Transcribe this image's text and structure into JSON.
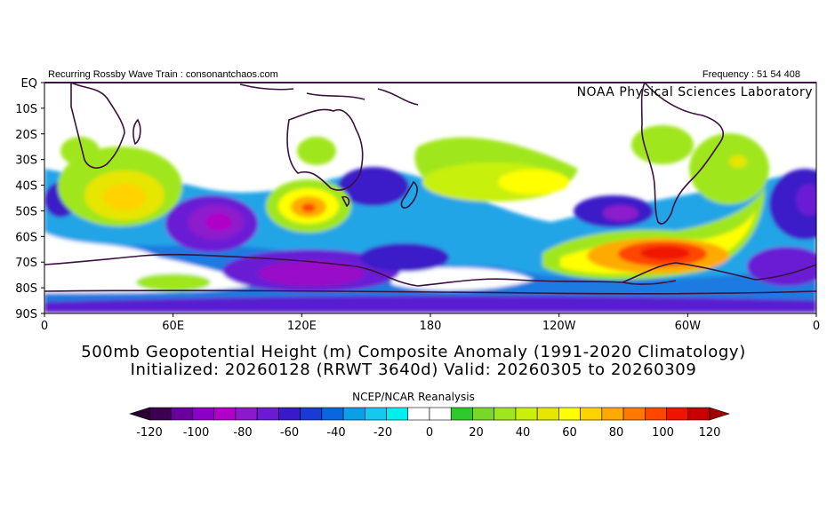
{
  "header": {
    "left": "Recurring Rossby Wave Train : consonantchaos.com",
    "right": "Frequency : 51 54 408",
    "lab": "NOAA Physical Sciences Laboratory"
  },
  "map": {
    "lat_labels": [
      "EQ",
      "10S",
      "20S",
      "30S",
      "40S",
      "50S",
      "60S",
      "70S",
      "80S",
      "90S"
    ],
    "lon_labels": [
      "0",
      "60E",
      "120E",
      "180",
      "120W",
      "60W",
      "0"
    ],
    "lat_range": [
      -90,
      0
    ],
    "lon_range": [
      0,
      360
    ],
    "anomalies": [
      {
        "name": "positive-south-atlantic-africa",
        "lon": 35,
        "lat": -45,
        "value": 45
      },
      {
        "name": "positive-south-indian",
        "lon": 120,
        "lat": -49,
        "value": 80
      },
      {
        "name": "positive-australia",
        "lon": 122,
        "lat": -27,
        "value": 20
      },
      {
        "name": "positive-south-pacific",
        "lon": 200,
        "lat": -38,
        "value": 40
      },
      {
        "name": "positive-southeast-pacific",
        "lon": 240,
        "lat": -38,
        "value": 40
      },
      {
        "name": "positive-bellingshausen",
        "lon": 282,
        "lat": -66,
        "value": 100
      },
      {
        "name": "positive-south-atlantic-west",
        "lon": 305,
        "lat": -40,
        "value": 40
      },
      {
        "name": "positive-weddell",
        "lon": 312,
        "lat": -62,
        "value": 60
      },
      {
        "name": "positive-antarctic-east",
        "lon": 40,
        "lat": -77,
        "value": 20
      },
      {
        "name": "positive-brazil",
        "lon": 313,
        "lat": -22,
        "value": 20
      },
      {
        "name": "negative-south-indian",
        "lon": 78,
        "lat": -52,
        "value": -80
      },
      {
        "name": "negative-east-antarctic",
        "lon": 110,
        "lat": -74,
        "value": -100
      },
      {
        "name": "negative-tasman",
        "lon": 145,
        "lat": -42,
        "value": -60
      },
      {
        "name": "negative-ross",
        "lon": 175,
        "lat": -70,
        "value": -40
      },
      {
        "name": "negative-pacific-south",
        "lon": 255,
        "lat": -48,
        "value": -60
      },
      {
        "name": "negative-atlantic-east",
        "lon": 355,
        "lat": -48,
        "value": -80
      },
      {
        "name": "negative-antarctic-atlantic",
        "lon": 340,
        "lat": -70,
        "value": -80
      },
      {
        "name": "negative-polar",
        "lon": 200,
        "lat": -87,
        "value": -40
      }
    ]
  },
  "title": {
    "line1": "500mb Geopotential Height (m) Composite Anomaly (1991-2020 Climatology)",
    "line2": "Initialized: 20260128 (RRWT 3640d) Valid: 20260305 to 20260309"
  },
  "colorbar": {
    "title": "NCEP/NCAR Reanalysis",
    "labels": [
      "-120",
      "-100",
      "-80",
      "-60",
      "-40",
      "-20",
      "0",
      "20",
      "40",
      "60",
      "80",
      "100",
      "120"
    ],
    "bounds": [
      -120,
      120
    ],
    "colors": [
      "#3b0050",
      "#6a009b",
      "#8a00c8",
      "#b000c8",
      "#8c1acc",
      "#6a1ad4",
      "#3a1ac8",
      "#1a3ad4",
      "#0a66e0",
      "#0aa0e6",
      "#14c8f0",
      "#00f0f0",
      "#ffffff",
      "#ffffff",
      "#2fc82f",
      "#78d728",
      "#a0e61e",
      "#c8f00a",
      "#e6e600",
      "#ffff00",
      "#ffd200",
      "#ffaa00",
      "#ff7800",
      "#ff4600",
      "#f01400",
      "#c80000"
    ],
    "under_color": "#280032",
    "over_color": "#a00000"
  }
}
